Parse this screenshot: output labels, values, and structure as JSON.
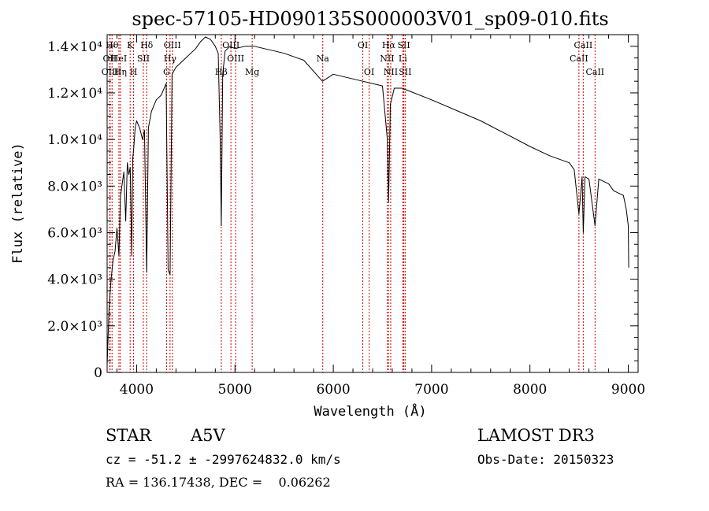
{
  "chart_data": {
    "type": "line",
    "title": "spec-57105-HD090135S000003V01_sp09-010.fits",
    "xlabel": "Wavelength (Å)",
    "ylabel": "Flux (relative)",
    "xlim": [
      3700,
      9100
    ],
    "ylim": [
      0,
      14500
    ],
    "xticks": [
      {
        "value": 4000,
        "label": "4000"
      },
      {
        "value": 5000,
        "label": "5000"
      },
      {
        "value": 6000,
        "label": "6000"
      },
      {
        "value": 7000,
        "label": "7000"
      },
      {
        "value": 8000,
        "label": "8000"
      },
      {
        "value": 9000,
        "label": "9000"
      }
    ],
    "yticks": [
      {
        "value": 0,
        "label": "0"
      },
      {
        "value": 2000,
        "label": "2.0×10³"
      },
      {
        "value": 4000,
        "label": "4.0×10³"
      },
      {
        "value": 6000,
        "label": "6.0×10³"
      },
      {
        "value": 8000,
        "label": "8.0×10³"
      },
      {
        "value": 10000,
        "label": "1.0×10⁴"
      },
      {
        "value": 12000,
        "label": "1.2×10⁴"
      },
      {
        "value": 14000,
        "label": "1.4×10⁴"
      }
    ],
    "series": [
      {
        "name": "flux",
        "x": [
          3700,
          3720,
          3740,
          3760,
          3780,
          3800,
          3820,
          3835,
          3850,
          3870,
          3889,
          3905,
          3920,
          3935,
          3950,
          3960,
          3970,
          3985,
          4000,
          4030,
          4060,
          4080,
          4102,
          4120,
          4150,
          4200,
          4250,
          4300,
          4320,
          4340,
          4360,
          4400,
          4450,
          4500,
          4550,
          4600,
          4650,
          4700,
          4750,
          4800,
          4830,
          4850,
          4861,
          4875,
          4900,
          4950,
          5000,
          5100,
          5200,
          5300,
          5400,
          5500,
          5700,
          5890,
          6000,
          6300,
          6500,
          6550,
          6563,
          6580,
          6620,
          6700,
          7000,
          7500,
          8000,
          8200,
          8400,
          8450,
          8498,
          8530,
          8542,
          8560,
          8600,
          8662,
          8700,
          8750,
          8800,
          8850,
          8900,
          8950,
          8980,
          9000,
          9005
        ],
        "y": [
          300,
          2800,
          4000,
          4800,
          5200,
          6200,
          5000,
          7500,
          8000,
          8600,
          6500,
          9000,
          8500,
          8800,
          5000,
          9200,
          9600,
          10500,
          10800,
          10500,
          10000,
          10400,
          4300,
          10500,
          11200,
          11700,
          11900,
          12400,
          4400,
          4200,
          12800,
          13100,
          13300,
          13500,
          13700,
          13900,
          14200,
          14400,
          14300,
          14000,
          13700,
          10000,
          6300,
          12800,
          13800,
          14000,
          13900,
          14000,
          14000,
          13900,
          13800,
          13700,
          13400,
          12500,
          12800,
          12500,
          12300,
          10000,
          7300,
          11500,
          12200,
          12200,
          11700,
          10800,
          9700,
          9300,
          9000,
          8700,
          6800,
          8400,
          6000,
          8400,
          8300,
          6300,
          8300,
          8200,
          8100,
          7800,
          7700,
          7600,
          7000,
          6300,
          4500
        ]
      }
    ],
    "line_markers": [
      {
        "wavelength": 3750,
        "label": "Hθ",
        "row": 1
      },
      {
        "wavelength": 3727,
        "label": "OII",
        "row": 2
      },
      {
        "wavelength": 3730,
        "label": "OIII",
        "row": 3
      },
      {
        "wavelength": 3820,
        "label": "HeI",
        "row": 2
      },
      {
        "wavelength": 3835,
        "label": "Hη",
        "row": 3
      },
      {
        "wavelength": 3934,
        "label": "K",
        "row": 1
      },
      {
        "wavelength": 3969,
        "label": "H",
        "row": 3
      },
      {
        "wavelength": 4068,
        "label": "SII",
        "row": 2
      },
      {
        "wavelength": 4102,
        "label": "Hδ",
        "row": 1
      },
      {
        "wavelength": 4340,
        "label": "Hγ",
        "row": 2
      },
      {
        "wavelength": 4363,
        "label": "OIII",
        "row": 1
      },
      {
        "wavelength": 4304,
        "label": "G",
        "row": 3
      },
      {
        "wavelength": 4861,
        "label": "Hβ",
        "row": 3
      },
      {
        "wavelength": 4959,
        "label": "OIII",
        "row": 1
      },
      {
        "wavelength": 5007,
        "label": "OIII",
        "row": 2
      },
      {
        "wavelength": 5175,
        "label": "Mg",
        "row": 3
      },
      {
        "wavelength": 5893,
        "label": "Na",
        "row": 2
      },
      {
        "wavelength": 6300,
        "label": "OI",
        "row": 1
      },
      {
        "wavelength": 6364,
        "label": "OI",
        "row": 3
      },
      {
        "wavelength": 6548,
        "label": "NII",
        "row": 2
      },
      {
        "wavelength": 6563,
        "label": "Hα",
        "row": 1
      },
      {
        "wavelength": 6584,
        "label": "NII",
        "row": 3
      },
      {
        "wavelength": 6707,
        "label": "Li",
        "row": 2
      },
      {
        "wavelength": 6717,
        "label": "SII",
        "row": 1
      },
      {
        "wavelength": 6731,
        "label": "SII",
        "row": 3
      },
      {
        "wavelength": 8498,
        "label": "CaII",
        "row": 2
      },
      {
        "wavelength": 8542,
        "label": "CaII",
        "row": 1
      },
      {
        "wavelength": 8662,
        "label": "CaII",
        "row": 3
      }
    ],
    "marker_color": "#cc0000",
    "line_color": "#000000"
  },
  "info": {
    "object_class": "STAR",
    "subclass": "A5V",
    "survey": "LAMOST DR3",
    "redshift_text": "cz = -51.2 ± -2997624832.0 km/s",
    "obs_date": "Obs-Date: 20150323",
    "coords_text": "RA = 136.17438, DEC =    0.06262"
  }
}
